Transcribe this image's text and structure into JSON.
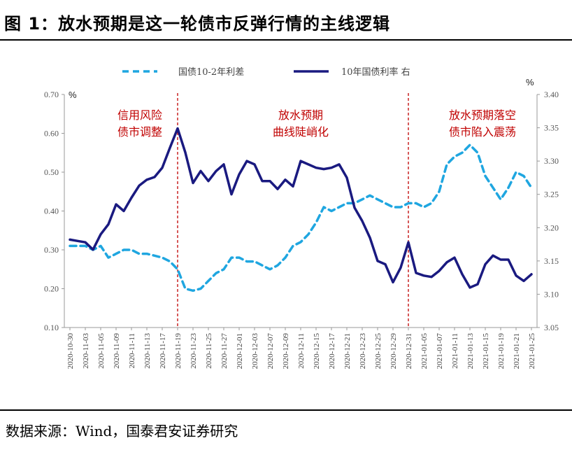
{
  "figure": {
    "title": "图 1：放水预期是这一轮债市反弹行情的主线逻辑",
    "source": "数据来源：Wind，国泰君安证券研究"
  },
  "chart_data": {
    "type": "line",
    "x": [
      "2020-10-30",
      "2020-11-02",
      "2020-11-03",
      "2020-11-04",
      "2020-11-05",
      "2020-11-06",
      "2020-11-09",
      "2020-11-10",
      "2020-11-11",
      "2020-11-12",
      "2020-11-13",
      "2020-11-16",
      "2020-11-17",
      "2020-11-18",
      "2020-11-19",
      "2020-11-20",
      "2020-11-23",
      "2020-11-24",
      "2020-11-25",
      "2020-11-26",
      "2020-11-27",
      "2020-11-30",
      "2020-12-01",
      "2020-12-02",
      "2020-12-03",
      "2020-12-04",
      "2020-12-07",
      "2020-12-08",
      "2020-12-09",
      "2020-12-10",
      "2020-12-11",
      "2020-12-14",
      "2020-12-15",
      "2020-12-16",
      "2020-12-17",
      "2020-12-18",
      "2020-12-21",
      "2020-12-22",
      "2020-12-23",
      "2020-12-24",
      "2020-12-25",
      "2020-12-28",
      "2020-12-29",
      "2020-12-30",
      "2020-12-31",
      "2021-01-04",
      "2021-01-05",
      "2021-01-06",
      "2021-01-07",
      "2021-01-08",
      "2021-01-11",
      "2021-01-12",
      "2021-01-13",
      "2021-01-14",
      "2021-01-15",
      "2021-01-18",
      "2021-01-19",
      "2021-01-20",
      "2021-01-21",
      "2021-01-22",
      "2021-01-25"
    ],
    "x_tick_labels": [
      "2020-10-30",
      "2020-11-03",
      "2020-11-05",
      "2020-11-09",
      "2020-11-11",
      "2020-11-13",
      "2020-11-17",
      "2020-11-19",
      "2020-11-23",
      "2020-11-25",
      "2020-11-27",
      "2020-12-01",
      "2020-12-03",
      "2020-12-07",
      "2020-12-09",
      "2020-12-11",
      "2020-12-15",
      "2020-12-17",
      "2020-12-21",
      "2020-12-23",
      "2020-12-25",
      "2020-12-29",
      "2020-12-31",
      "2021-01-05",
      "2021-01-07",
      "2021-01-11",
      "2021-01-13",
      "2021-01-15",
      "2021-01-19",
      "2021-01-21",
      "2021-01-25"
    ],
    "series": [
      {
        "name": "国债10-2年利差",
        "axis": "left",
        "style": "dashed",
        "color": "#1fa6e0",
        "values": [
          0.31,
          0.31,
          0.31,
          0.3,
          0.31,
          0.28,
          0.29,
          0.3,
          0.3,
          0.29,
          0.29,
          0.285,
          0.28,
          0.27,
          0.25,
          0.2,
          0.195,
          0.2,
          0.22,
          0.24,
          0.25,
          0.28,
          0.28,
          0.27,
          0.27,
          0.26,
          0.25,
          0.26,
          0.28,
          0.31,
          0.32,
          0.34,
          0.37,
          0.41,
          0.4,
          0.41,
          0.42,
          0.42,
          0.43,
          0.44,
          0.43,
          0.42,
          0.41,
          0.41,
          0.42,
          0.42,
          0.41,
          0.42,
          0.45,
          0.52,
          0.54,
          0.55,
          0.57,
          0.55,
          0.49,
          0.46,
          0.43,
          0.46,
          0.5,
          0.49,
          0.46
        ]
      },
      {
        "name": "10年国债利率 右",
        "axis": "right",
        "style": "solid",
        "color": "#1a1a80",
        "values": [
          3.182,
          3.18,
          3.178,
          3.167,
          3.19,
          3.205,
          3.235,
          3.225,
          3.245,
          3.263,
          3.272,
          3.276,
          3.29,
          3.32,
          3.349,
          3.313,
          3.267,
          3.285,
          3.27,
          3.285,
          3.295,
          3.25,
          3.28,
          3.3,
          3.295,
          3.27,
          3.27,
          3.258,
          3.272,
          3.262,
          3.3,
          3.295,
          3.29,
          3.288,
          3.29,
          3.295,
          3.275,
          3.23,
          3.21,
          3.185,
          3.15,
          3.145,
          3.118,
          3.14,
          3.178,
          3.132,
          3.128,
          3.126,
          3.135,
          3.148,
          3.155,
          3.13,
          3.11,
          3.115,
          3.145,
          3.158,
          3.152,
          3.152,
          3.128,
          3.12,
          3.13
        ]
      }
    ],
    "y_left": {
      "unit": "%",
      "ylim": [
        0.1,
        0.7
      ],
      "ticks": [
        "0.10",
        "0.20",
        "0.30",
        "0.40",
        "0.50",
        "0.60",
        "0.70"
      ]
    },
    "y_right": {
      "unit": "%",
      "ylim": [
        3.05,
        3.4
      ],
      "ticks": [
        "3.05",
        "3.10",
        "3.15",
        "3.20",
        "3.25",
        "3.30",
        "3.35",
        "3.40"
      ]
    },
    "vlines": [
      {
        "x": "2020-11-19",
        "color": "#c00000",
        "style": "dashed"
      },
      {
        "x": "2020-12-31",
        "color": "#c00000",
        "style": "dashed"
      }
    ],
    "annotations": [
      {
        "lines": [
          "信用风险",
          "债市调整"
        ],
        "color": "#c00000"
      },
      {
        "lines": [
          "放水预期",
          "曲线陡峭化"
        ],
        "color": "#c00000"
      },
      {
        "lines": [
          "放水预期落空",
          "债市陷入震荡"
        ],
        "color": "#c00000"
      }
    ],
    "legend": {
      "position": "top"
    },
    "grid": false
  }
}
